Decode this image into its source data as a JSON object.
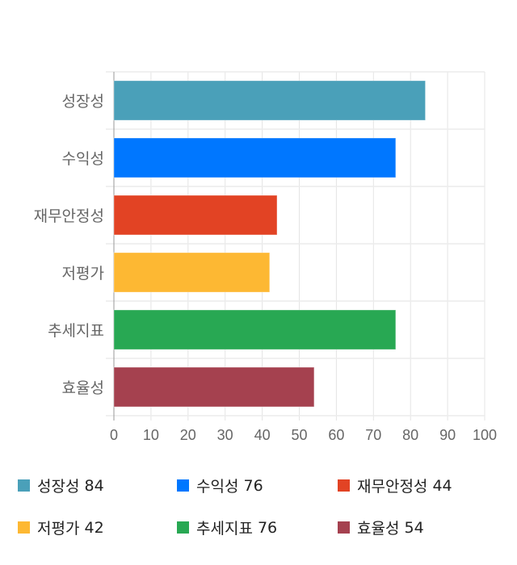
{
  "chart_data": {
    "type": "bar",
    "orientation": "horizontal",
    "categories": [
      "성장성",
      "수익성",
      "재무안정성",
      "저평가",
      "추세지표",
      "효율성"
    ],
    "values": [
      84,
      76,
      44,
      42,
      76,
      54
    ],
    "colors": [
      "#4aa0b9",
      "#0077ff",
      "#e24324",
      "#fdb833",
      "#28a853",
      "#a5414f"
    ],
    "xlim": [
      0,
      100
    ],
    "xticks": [
      "0",
      "10",
      "20",
      "30",
      "40",
      "50",
      "60",
      "70",
      "80",
      "90",
      "100"
    ],
    "grid": true,
    "legend_position": "bottom",
    "legend": [
      {
        "label": "성장성",
        "value": "84"
      },
      {
        "label": "수익성",
        "value": "76"
      },
      {
        "label": "재무안정성",
        "value": "44"
      },
      {
        "label": "저평가",
        "value": "42"
      },
      {
        "label": "추세지표",
        "value": "76"
      },
      {
        "label": "효율성",
        "value": "54"
      }
    ]
  }
}
